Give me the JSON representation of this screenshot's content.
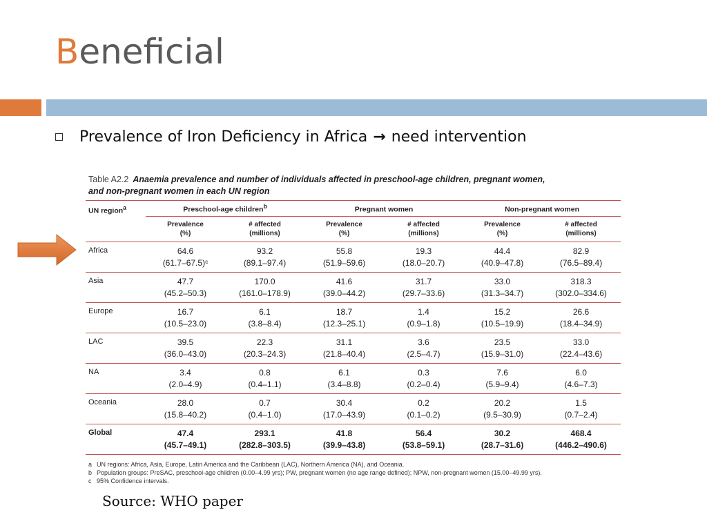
{
  "slide": {
    "title_first": "B",
    "title_rest": "eneficial",
    "bullet_before": "Prevalence of Iron Deficiency in Africa",
    "bullet_arrow": "→",
    "bullet_after": "need intervention",
    "source": "Source: WHO paper",
    "colors": {
      "accent": "#e07a3c",
      "band": "#9bbbd6",
      "rule": "#c0504d"
    }
  },
  "table": {
    "label": "Table A2.2",
    "title_line1": "Anaemia prevalence and number of individuals affected in preschool-age children, pregnant women,",
    "title_line2": "and non-pregnant women in each UN region",
    "region_header": "UN region",
    "region_mark": "a",
    "groups": [
      {
        "label": "Preschool-age children",
        "mark": "b"
      },
      {
        "label": "Pregnant women",
        "mark": ""
      },
      {
        "label": "Non-pregnant women",
        "mark": ""
      }
    ],
    "subheaders": [
      "Prevalence\n(%)",
      "# affected\n(millions)",
      "Prevalence\n(%)",
      "# affected\n(millions)",
      "Prevalence\n(%)",
      "# affected\n(millions)"
    ],
    "rows": [
      {
        "region": "Africa",
        "bold": false,
        "cells": [
          [
            "64.6",
            "(61.7–67.5)ᶜ"
          ],
          [
            "93.2",
            "(89.1–97.4)"
          ],
          [
            "55.8",
            "(51.9–59.6)"
          ],
          [
            "19.3",
            "(18.0–20.7)"
          ],
          [
            "44.4",
            "(40.9–47.8)"
          ],
          [
            "82.9",
            "(76.5–89.4)"
          ]
        ]
      },
      {
        "region": "Asia",
        "bold": false,
        "cells": [
          [
            "47.7",
            "(45.2–50.3)"
          ],
          [
            "170.0",
            "(161.0–178.9)"
          ],
          [
            "41.6",
            "(39.0–44.2)"
          ],
          [
            "31.7",
            "(29.7–33.6)"
          ],
          [
            "33.0",
            "(31.3–34.7)"
          ],
          [
            "318.3",
            "(302.0–334.6)"
          ]
        ]
      },
      {
        "region": "Europe",
        "bold": false,
        "cells": [
          [
            "16.7",
            "(10.5–23.0)"
          ],
          [
            "6.1",
            "(3.8–8.4)"
          ],
          [
            "18.7",
            "(12.3–25.1)"
          ],
          [
            "1.4",
            "(0.9–1.8)"
          ],
          [
            "15.2",
            "(10.5–19.9)"
          ],
          [
            "26.6",
            "(18.4–34.9)"
          ]
        ]
      },
      {
        "region": "LAC",
        "bold": false,
        "cells": [
          [
            "39.5",
            "(36.0–43.0)"
          ],
          [
            "22.3",
            "(20.3–24.3)"
          ],
          [
            "31.1",
            "(21.8–40.4)"
          ],
          [
            "3.6",
            "(2.5–4.7)"
          ],
          [
            "23.5",
            "(15.9–31.0)"
          ],
          [
            "33.0",
            "(22.4–43.6)"
          ]
        ]
      },
      {
        "region": "NA",
        "bold": false,
        "cells": [
          [
            "3.4",
            "(2.0–4.9)"
          ],
          [
            "0.8",
            "(0.4–1.1)"
          ],
          [
            "6.1",
            "(3.4–8.8)"
          ],
          [
            "0.3",
            "(0.2–0.4)"
          ],
          [
            "7.6",
            "(5.9–9.4)"
          ],
          [
            "6.0",
            "(4.6–7.3)"
          ]
        ]
      },
      {
        "region": "Oceania",
        "bold": false,
        "cells": [
          [
            "28.0",
            "(15.8–40.2)"
          ],
          [
            "0.7",
            "(0.4–1.0)"
          ],
          [
            "30.4",
            "(17.0–43.9)"
          ],
          [
            "0.2",
            "(0.1–0.2)"
          ],
          [
            "20.2",
            "(9.5–30.9)"
          ],
          [
            "1.5",
            "(0.7–2.4)"
          ]
        ]
      },
      {
        "region": "Global",
        "bold": true,
        "cells": [
          [
            "47.4",
            "(45.7–49.1)"
          ],
          [
            "293.1",
            "(282.8–303.5)"
          ],
          [
            "41.8",
            "(39.9–43.8)"
          ],
          [
            "56.4",
            "(53.8–59.1)"
          ],
          [
            "30.2",
            "(28.7–31.6)"
          ],
          [
            "468.4",
            "(446.2–490.6)"
          ]
        ]
      }
    ],
    "footnotes": [
      {
        "mark": "a",
        "text": "UN regions: Africa, Asia, Europe, Latin America and the Caribbean (LAC), Northern America (NA), and Oceania."
      },
      {
        "mark": "b",
        "text": "Population groups: PreSAC, preschool-age children (0.00–4.99 yrs); PW, pregnant women (no age range defined); NPW, non-pregnant women (15.00–49.99 yrs)."
      },
      {
        "mark": "c",
        "text": "95% Confidence intervals."
      }
    ]
  }
}
